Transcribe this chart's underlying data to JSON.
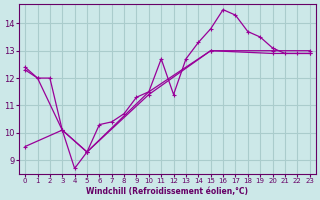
{
  "bg_color": "#cce8e8",
  "line_color": "#990099",
  "grid_color": "#aacccc",
  "xlabel": "Windchill (Refroidissement éolien,°C)",
  "xlabel_color": "#660066",
  "tick_color": "#660066",
  "ylim": [
    8.5,
    14.7
  ],
  "xlim": [
    -0.5,
    23.5
  ],
  "yticks": [
    9,
    10,
    11,
    12,
    13,
    14
  ],
  "xticks": [
    0,
    1,
    2,
    3,
    4,
    5,
    6,
    7,
    8,
    9,
    10,
    11,
    12,
    13,
    14,
    15,
    16,
    17,
    18,
    19,
    20,
    21,
    22,
    23
  ],
  "line1_x": [
    0,
    1,
    2,
    3,
    4,
    5,
    6,
    7,
    8,
    9,
    10,
    11,
    12,
    13,
    14,
    15,
    16,
    17,
    18,
    19,
    20,
    21,
    22,
    23
  ],
  "line1_y": [
    12.4,
    12.0,
    12.0,
    10.1,
    8.7,
    9.3,
    10.3,
    10.4,
    10.7,
    11.3,
    11.5,
    12.7,
    11.4,
    12.7,
    13.3,
    13.8,
    14.5,
    14.3,
    13.7,
    13.5,
    13.1,
    12.9,
    12.9,
    12.9
  ],
  "line2_x": [
    0,
    1,
    3,
    5,
    10,
    15,
    20,
    23
  ],
  "line2_y": [
    12.3,
    12.0,
    10.1,
    9.3,
    11.4,
    13.0,
    12.9,
    12.9
  ],
  "line3_x": [
    0,
    3,
    5,
    10,
    15,
    20,
    23
  ],
  "line3_y": [
    9.5,
    10.1,
    9.3,
    11.5,
    13.0,
    13.0,
    13.0
  ]
}
